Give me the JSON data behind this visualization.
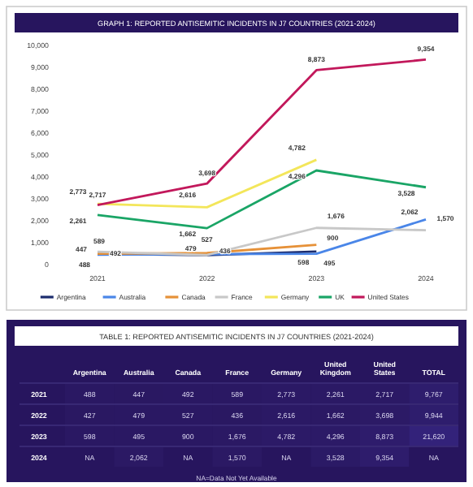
{
  "chart_data": [
    {
      "type": "line",
      "title": "GRAPH 1: REPORTED ANTISEMITIC INCIDENTS IN J7 COUNTRIES (2021-2024)",
      "categories": [
        "2021",
        "2022",
        "2023",
        "2024"
      ],
      "ylim": [
        0,
        10000
      ],
      "yticks": [
        {
          "value": 0,
          "label": "0"
        },
        {
          "value": 1000,
          "label": "1,000"
        },
        {
          "value": 2000,
          "label": "2,000"
        },
        {
          "value": 3000,
          "label": "3,000"
        },
        {
          "value": 4000,
          "label": "4,000"
        },
        {
          "value": 5000,
          "label": "5,000"
        },
        {
          "value": 6000,
          "label": "6,000"
        },
        {
          "value": 7000,
          "label": "7,000"
        },
        {
          "value": 8000,
          "label": "8,000"
        },
        {
          "value": 9000,
          "label": "9,000"
        },
        {
          "value": 10000,
          "label": "10,000"
        }
      ],
      "grid": false,
      "legend": "bottom",
      "marker": "none",
      "line_style": "solid",
      "series": [
        {
          "name": "Argentina",
          "color": "#1c2c6e",
          "values": [
            488,
            427,
            598,
            null
          ],
          "value_labels": [
            "488",
            null,
            "598",
            null
          ]
        },
        {
          "name": "Australia",
          "color": "#4a86e8",
          "values": [
            447,
            479,
            495,
            2062
          ],
          "value_labels": [
            "447",
            "479",
            "495",
            "2,062"
          ]
        },
        {
          "name": "Canada",
          "color": "#e69138",
          "values": [
            492,
            527,
            900,
            null
          ],
          "value_labels": [
            "492",
            "527",
            "900",
            null
          ]
        },
        {
          "name": "France",
          "color": "#c8c8c8",
          "values": [
            589,
            436,
            1676,
            1570
          ],
          "value_labels": [
            "589",
            "436",
            "1,676",
            "1,570"
          ]
        },
        {
          "name": "Germany",
          "color": "#f3e65a",
          "values": [
            2773,
            2616,
            4782,
            null
          ],
          "value_labels": [
            "2,773",
            "2,616",
            "4,782",
            null
          ]
        },
        {
          "name": "UK",
          "color": "#1aa566",
          "values": [
            2261,
            1662,
            4296,
            3528
          ],
          "value_labels": [
            "2,261",
            "1,662",
            "4,296",
            "3,528"
          ]
        },
        {
          "name": "United States",
          "color": "#c2185b",
          "values": [
            2717,
            3698,
            8873,
            9354
          ],
          "value_labels": [
            "2,717",
            "3,698",
            "8,873",
            "9,354"
          ]
        }
      ]
    },
    {
      "type": "heatmap",
      "title": "TABLE 1: REPORTED ANTISEMITIC INCIDENTS IN J7 COUNTRIES (2021-2024)",
      "categories": [
        "Argentina",
        "Australia",
        "Canada",
        "France",
        "Germany",
        "United Kingdom",
        "United States",
        "TOTAL"
      ],
      "y_categories": [
        "2021",
        "2022",
        "2023",
        "2024"
      ],
      "cells": [
        [
          488,
          447,
          492,
          589,
          2773,
          2261,
          2717,
          9767
        ],
        [
          427,
          479,
          527,
          436,
          2616,
          1662,
          3698,
          9944
        ],
        [
          598,
          495,
          900,
          1676,
          4782,
          4296,
          8873,
          21620
        ],
        [
          null,
          2062,
          null,
          1570,
          null,
          3528,
          9354,
          null
        ]
      ],
      "cell_labels": [
        [
          "488",
          "447",
          "492",
          "589",
          "2,773",
          "2,261",
          "2,717",
          "9,767"
        ],
        [
          "427",
          "479",
          "527",
          "436",
          "2,616",
          "1,662",
          "3,698",
          "9,944"
        ],
        [
          "598",
          "495",
          "900",
          "1,676",
          "4,782",
          "4,296",
          "8,873",
          "21,620"
        ],
        [
          "NA",
          "2,062",
          "NA",
          "1,570",
          "NA",
          "3,528",
          "9,354",
          "NA"
        ]
      ],
      "annotations": [
        "NA=Data Not Yet Available"
      ]
    }
  ]
}
